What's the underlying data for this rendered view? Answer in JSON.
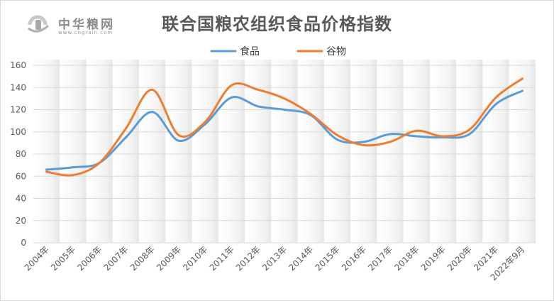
{
  "logo": {
    "name": "中华粮网",
    "url": "www.cngrain.com"
  },
  "chart_data": {
    "type": "line",
    "title": "联合国粮农组织食品价格指数",
    "categories": [
      "2004年",
      "2005年",
      "2006年",
      "2007年",
      "2008年",
      "2009年",
      "2010年",
      "2011年",
      "2012年",
      "2013年",
      "2014年",
      "2015年",
      "2016年",
      "2017年",
      "2018年",
      "2019年",
      "2020年",
      "2021年",
      "2022年9月"
    ],
    "series": [
      {
        "name": "食品",
        "color": "#5b9bd5",
        "values": [
          66,
          68,
          72,
          95,
          118,
          92,
          107,
          131,
          123,
          120,
          115,
          93,
          91,
          98,
          96,
          95,
          98,
          125,
          137
        ]
      },
      {
        "name": "谷物",
        "color": "#ed7d31",
        "values": [
          64,
          61,
          72,
          103,
          138,
          97,
          109,
          142,
          138,
          130,
          116,
          97,
          88,
          91,
          101,
          96,
          102,
          131,
          148
        ]
      }
    ],
    "yticks": [
      0,
      20,
      40,
      60,
      80,
      100,
      120,
      140,
      160
    ],
    "ylim": [
      0,
      160
    ],
    "grid": "horizontal",
    "legend": "top"
  }
}
